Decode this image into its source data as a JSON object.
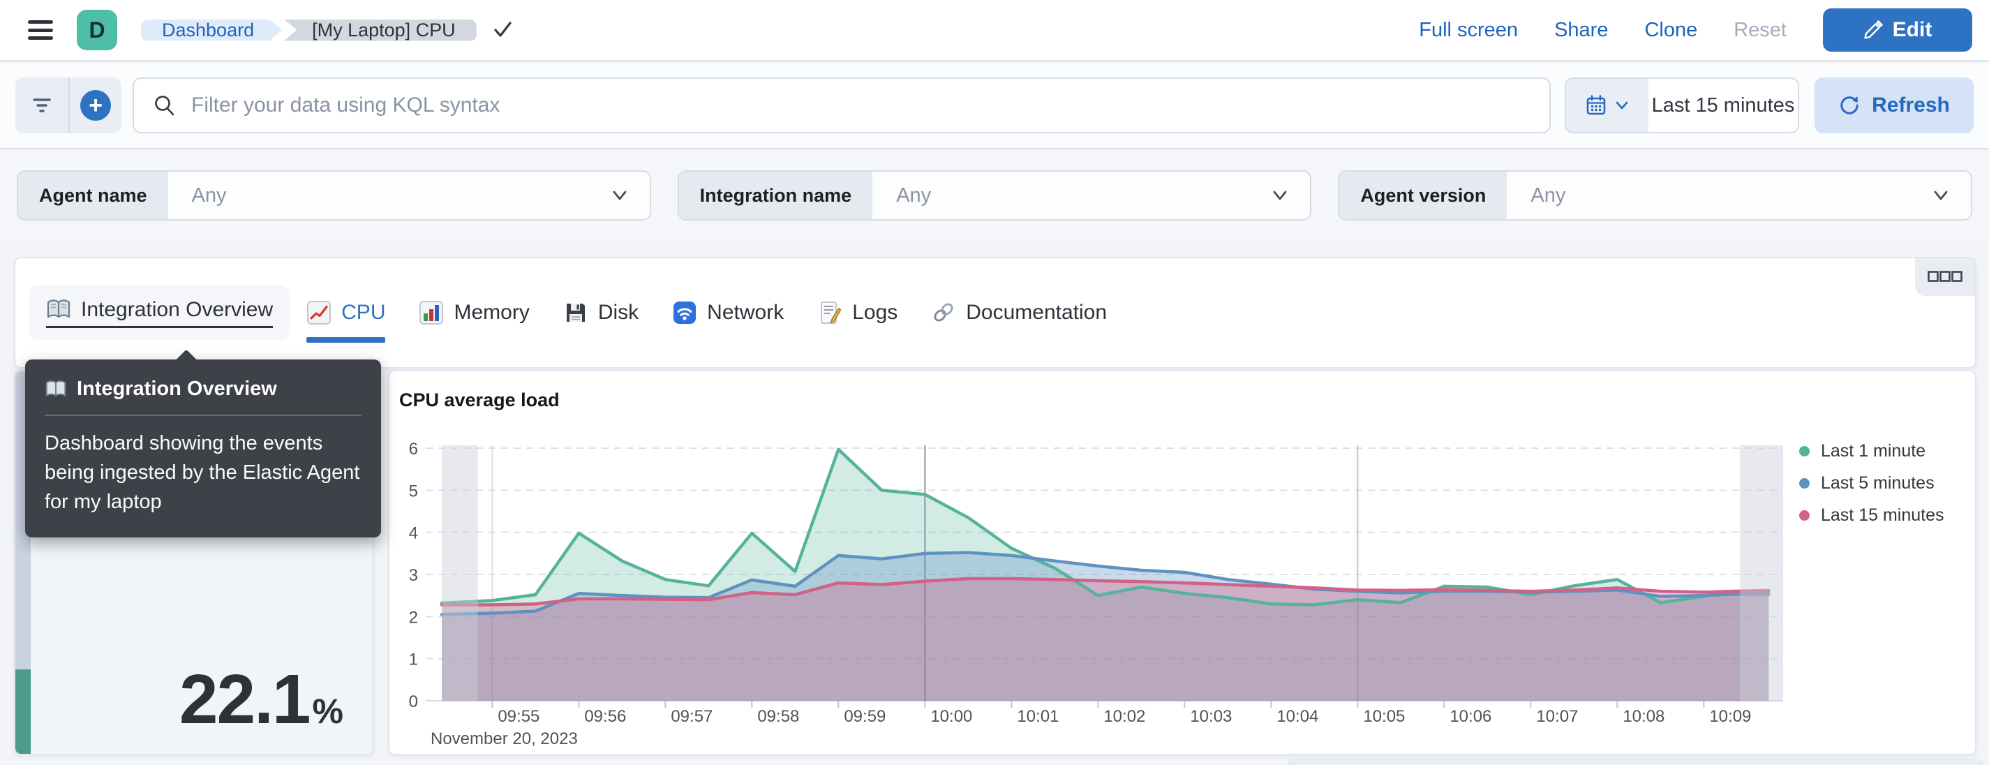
{
  "topbar": {
    "logo_initial": "D",
    "breadcrumbs": {
      "root": "Dashboard",
      "current": "[My Laptop] CPU"
    },
    "links": {
      "full_screen": "Full screen",
      "share": "Share",
      "clone": "Clone",
      "reset": "Reset"
    },
    "edit_button": "Edit"
  },
  "query_bar": {
    "search_placeholder": "Filter your data using KQL syntax",
    "time_range": "Last 15 minutes",
    "refresh_button": "Refresh"
  },
  "filters": {
    "items": [
      {
        "label": "Agent name",
        "value": "Any"
      },
      {
        "label": "Integration name",
        "value": "Any"
      },
      {
        "label": "Agent version",
        "value": "Any"
      }
    ]
  },
  "tabs": {
    "items": [
      {
        "label": "Integration Overview",
        "icon": "book-icon",
        "state": "hovered"
      },
      {
        "label": "CPU",
        "icon": "chart-increasing-icon",
        "state": "selected"
      },
      {
        "label": "Memory",
        "icon": "bar-chart-icon",
        "state": "normal"
      },
      {
        "label": "Disk",
        "icon": "floppy-disk-icon",
        "state": "normal"
      },
      {
        "label": "Network",
        "icon": "wireless-icon",
        "state": "normal"
      },
      {
        "label": "Logs",
        "icon": "memo-icon",
        "state": "normal"
      },
      {
        "label": "Documentation",
        "icon": "link-icon",
        "state": "normal"
      }
    ]
  },
  "tooltip": {
    "title": "Integration Overview",
    "body": "Dashboard showing the events being ingested by the Elastic Agent for my laptop"
  },
  "metric": {
    "value": "22.1",
    "unit": "%",
    "percent": 22.1,
    "bar_color": "#4C9C89",
    "track_color": "#C9D2E1"
  },
  "chart_data": {
    "type": "area",
    "title": "CPU average load",
    "xlabel": "",
    "ylabel": "",
    "legend_position": "right",
    "grid": {
      "horizontal_dashed": true,
      "vertical_lines": [
        "09:55",
        "10:00",
        "10:05"
      ]
    },
    "y_axis": {
      "min": 0,
      "max": 6,
      "ticks": [
        0,
        1,
        2,
        3,
        4,
        5,
        6
      ]
    },
    "x_axis": {
      "start": "09:54:25",
      "end": "10:09:55",
      "tick_labels": [
        "09:55",
        "09:56",
        "09:57",
        "09:58",
        "09:59",
        "10:00",
        "10:01",
        "10:02",
        "10:03",
        "10:04",
        "10:05",
        "10:06",
        "10:07",
        "10:08",
        "10:09"
      ],
      "date_label": "November 20, 2023"
    },
    "partial_buckets": {
      "left": [
        "09:54:25",
        "09:54:50"
      ],
      "right": [
        "10:09:25",
        "10:09:55"
      ]
    },
    "x": [
      "09:54:25",
      "09:55:00",
      "09:55:30",
      "09:56:00",
      "09:56:30",
      "09:57:00",
      "09:57:30",
      "09:58:00",
      "09:58:30",
      "09:59:00",
      "09:59:30",
      "10:00:00",
      "10:00:30",
      "10:01:00",
      "10:01:30",
      "10:02:00",
      "10:02:30",
      "10:03:00",
      "10:03:30",
      "10:04:00",
      "10:04:30",
      "10:05:00",
      "10:05:30",
      "10:06:00",
      "10:06:30",
      "10:07:00",
      "10:07:30",
      "10:08:00",
      "10:08:30",
      "10:09:00",
      "10:09:20",
      "10:09:45"
    ],
    "series": [
      {
        "name": "Last 1 minute",
        "color": "#54B399",
        "values": [
          2.32,
          2.38,
          2.52,
          3.98,
          3.32,
          2.88,
          2.73,
          3.98,
          3.07,
          5.97,
          5.0,
          4.9,
          4.35,
          3.62,
          3.15,
          2.5,
          2.7,
          2.55,
          2.45,
          2.3,
          2.28,
          2.4,
          2.33,
          2.72,
          2.7,
          2.52,
          2.73,
          2.88,
          2.33,
          2.48,
          2.6,
          2.62
        ]
      },
      {
        "name": "Last 5 minutes",
        "color": "#6092C0",
        "values": [
          2.05,
          2.08,
          2.13,
          2.55,
          2.5,
          2.46,
          2.45,
          2.87,
          2.72,
          3.45,
          3.37,
          3.5,
          3.52,
          3.45,
          3.32,
          3.2,
          3.1,
          3.05,
          2.88,
          2.77,
          2.65,
          2.6,
          2.56,
          2.6,
          2.6,
          2.58,
          2.6,
          2.63,
          2.48,
          2.5,
          2.53,
          2.53
        ]
      },
      {
        "name": "Last 15 minutes",
        "color": "#D36086",
        "values": [
          2.28,
          2.28,
          2.3,
          2.42,
          2.42,
          2.41,
          2.4,
          2.57,
          2.52,
          2.8,
          2.76,
          2.84,
          2.9,
          2.9,
          2.88,
          2.85,
          2.83,
          2.8,
          2.76,
          2.72,
          2.68,
          2.63,
          2.62,
          2.64,
          2.62,
          2.6,
          2.63,
          2.68,
          2.6,
          2.58,
          2.6,
          2.6
        ]
      }
    ]
  }
}
